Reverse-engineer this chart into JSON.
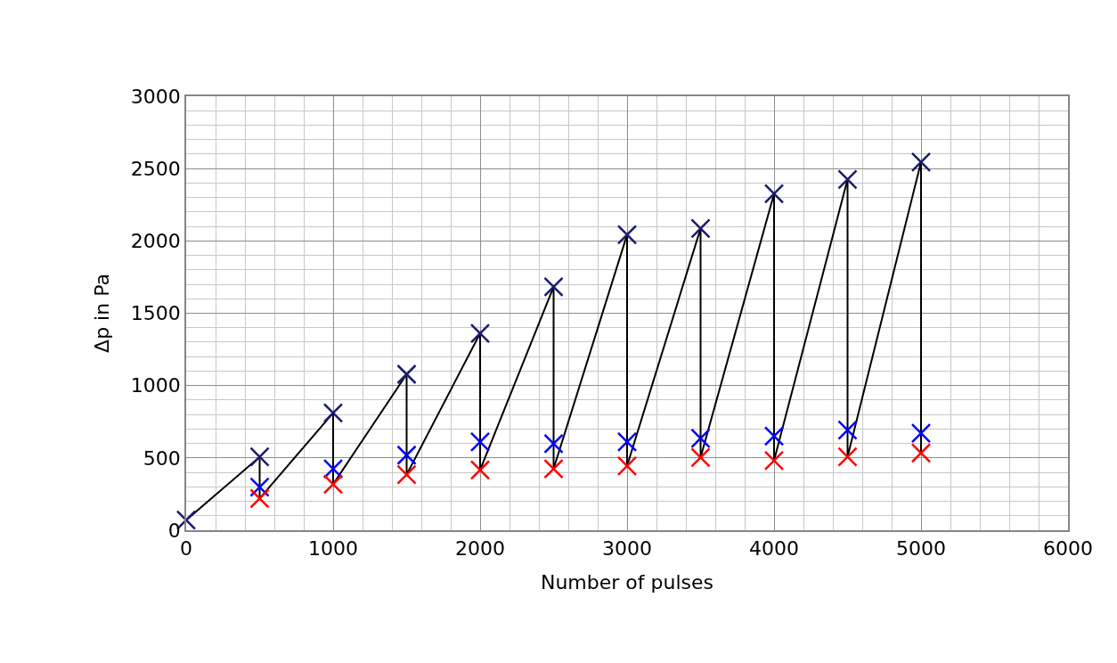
{
  "chart_data": {
    "type": "scatter",
    "xlabel": "Number of pulses",
    "ylabel": "Δp in Pa",
    "x": [
      0,
      500,
      1000,
      1500,
      2000,
      2500,
      3000,
      3500,
      4000,
      4500,
      5000
    ],
    "series": [
      {
        "type": "line",
        "color": "#000000",
        "marker": "none",
        "x": [
          0,
          500,
          500,
          1000,
          1000,
          1500,
          1500,
          2000,
          2000,
          2500,
          2500,
          3000,
          3000,
          3500,
          3500,
          4000,
          4000,
          4500,
          4500,
          5000,
          5000
        ],
        "values": [
          70,
          507,
          220,
          811,
          318,
          1078,
          384,
          1361,
          417,
          1682,
          425,
          2043,
          445,
          2086,
          503,
          2326,
          482,
          2425,
          507,
          2545,
          534
        ]
      },
      {
        "color": "#1a1a6e",
        "values": [
          70,
          507,
          811,
          1078,
          1361,
          1682,
          2043,
          2086,
          2326,
          2425,
          2545
        ]
      },
      {
        "color": "#0000ff",
        "values": [
          null,
          298,
          425,
          519,
          610,
          598,
          610,
          636,
          651,
          692,
          671
        ]
      },
      {
        "color": "#ff0000",
        "values": [
          null,
          220,
          318,
          384,
          417,
          425,
          445,
          503,
          482,
          507,
          534
        ]
      }
    ],
    "marker": "cross",
    "xlim": [
      0,
      6000
    ],
    "xticks": [
      0,
      1000,
      2000,
      3000,
      4000,
      5000,
      6000
    ],
    "ylim": [
      0,
      3000
    ],
    "yticks": [
      0,
      500,
      1000,
      1500,
      2000,
      2500,
      3000
    ],
    "grid": true
  }
}
